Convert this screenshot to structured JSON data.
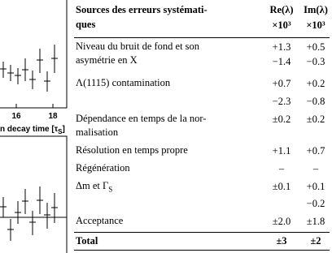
{
  "figure": {
    "x_ticks": [
      "16",
      "18"
    ],
    "x_label": "n decay time [τ",
    "x_label_sub": "S",
    "x_label_end": "]"
  },
  "table": {
    "header": {
      "source": [
        "Sources des erreurs systémati-",
        "ques"
      ],
      "re": [
        "Re(λ)",
        "×10³"
      ],
      "im": [
        "Im(λ)",
        "×10³"
      ]
    },
    "rows": [
      {
        "source": [
          "Niveau du bruit de fond et son",
          "asymétrie en X"
        ],
        "re": [
          "+1.3",
          "−1.4"
        ],
        "im": [
          "+0.5",
          "−0.3"
        ]
      },
      {
        "source": [
          "Λ(1115) contamination"
        ],
        "re": [
          "+0.7",
          "−2.3"
        ],
        "im": [
          "+0.2",
          "−0.8"
        ]
      },
      {
        "source": [
          "Dépendance en temps de la nor-",
          "malisation"
        ],
        "re": [
          "±0.2"
        ],
        "im": [
          "±0.2"
        ]
      },
      {
        "source": [
          "Résolution en temps propre"
        ],
        "re": [
          "+1.1"
        ],
        "im": [
          "+0.7"
        ]
      },
      {
        "source": [
          "Régénération"
        ],
        "re": [
          "–"
        ],
        "im": [
          "–"
        ]
      },
      {
        "source": [
          "Δm et Γ"
        ],
        "source_sub": "S",
        "re": [
          "±0.1"
        ],
        "im": [
          "+0.1",
          "−0.2"
        ]
      },
      {
        "source": [
          "Acceptance"
        ],
        "re": [
          "±2.0"
        ],
        "im": [
          "±1.8"
        ]
      }
    ],
    "total": {
      "source": "Total",
      "re": "±3",
      "im": "±2"
    }
  }
}
